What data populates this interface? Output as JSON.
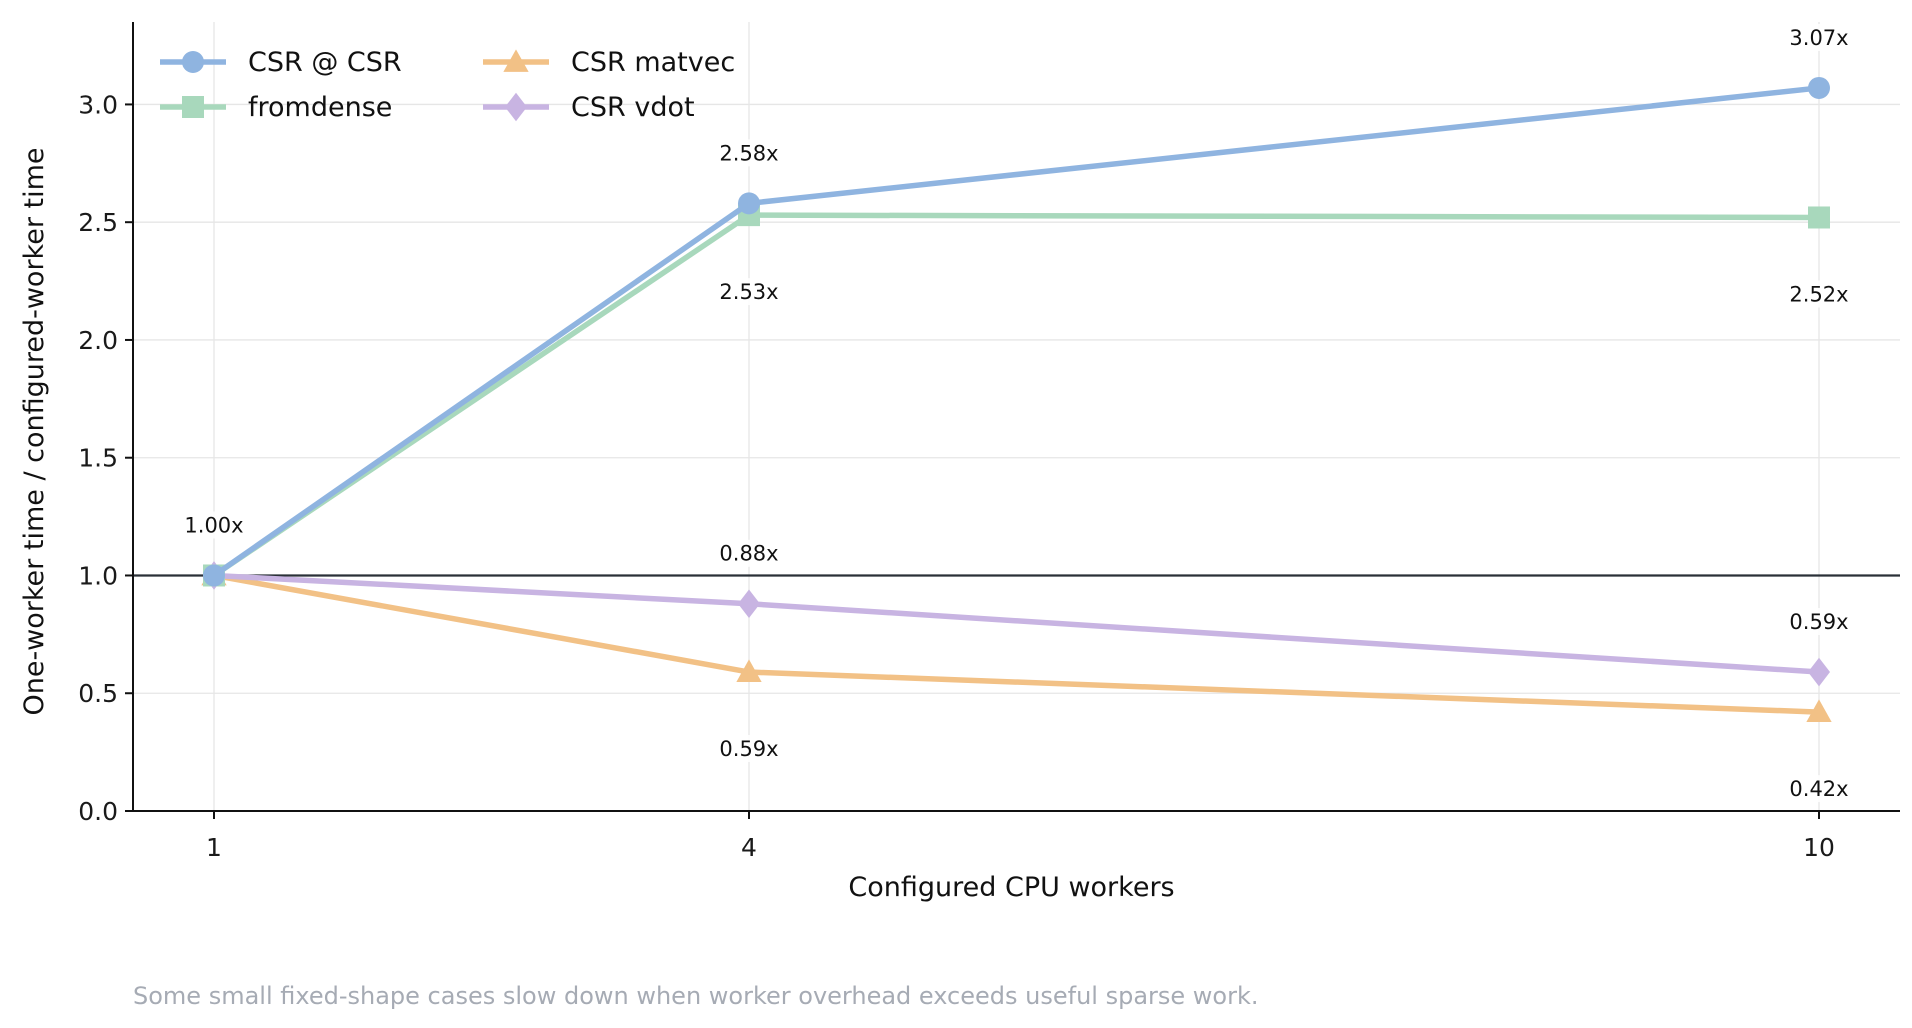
{
  "chart_data": {
    "type": "line",
    "x": [
      1,
      4,
      10
    ],
    "x_ticks": [
      "1",
      "4",
      "10"
    ],
    "xlabel": "Configured CPU workers",
    "ylabel": "One-worker time / configured-worker time",
    "ylim": [
      0,
      3.35
    ],
    "y_ticks": [
      "0.0",
      "0.5",
      "1.0",
      "1.5",
      "2.0",
      "2.5",
      "3.0"
    ],
    "grid": true,
    "reference_line": 1.0,
    "legend": {
      "placement": "top-left",
      "columns": 2
    },
    "series": [
      {
        "name": "CSR @ CSR",
        "values": [
          1.0,
          2.58,
          3.07
        ],
        "labels": [
          "1.00x",
          "2.58x",
          "3.07x"
        ],
        "label_pos": [
          "above",
          "above",
          "above"
        ],
        "color": "#8fb4e0",
        "marker": "circle"
      },
      {
        "name": "fromdense",
        "values": [
          1.0,
          2.53,
          2.52
        ],
        "labels": [
          "",
          "2.53x",
          "2.52x"
        ],
        "label_pos": [
          "below",
          "below",
          "below"
        ],
        "color": "#a8d8bc",
        "marker": "square"
      },
      {
        "name": "CSR matvec",
        "values": [
          1.0,
          0.59,
          0.42
        ],
        "labels": [
          "",
          "0.59x",
          "0.42x"
        ],
        "label_pos": [
          "below",
          "below",
          "below"
        ],
        "color": "#f2c186",
        "marker": "triangle"
      },
      {
        "name": "CSR vdot",
        "values": [
          1.0,
          0.88,
          0.59
        ],
        "labels": [
          "",
          "0.88x",
          "0.59x"
        ],
        "label_pos": [
          "above",
          "above",
          "above"
        ],
        "color": "#c8b4e2",
        "marker": "diamond"
      }
    ],
    "caption": "Some small fixed-shape cases slow down when worker overhead exceeds useful sparse work."
  }
}
